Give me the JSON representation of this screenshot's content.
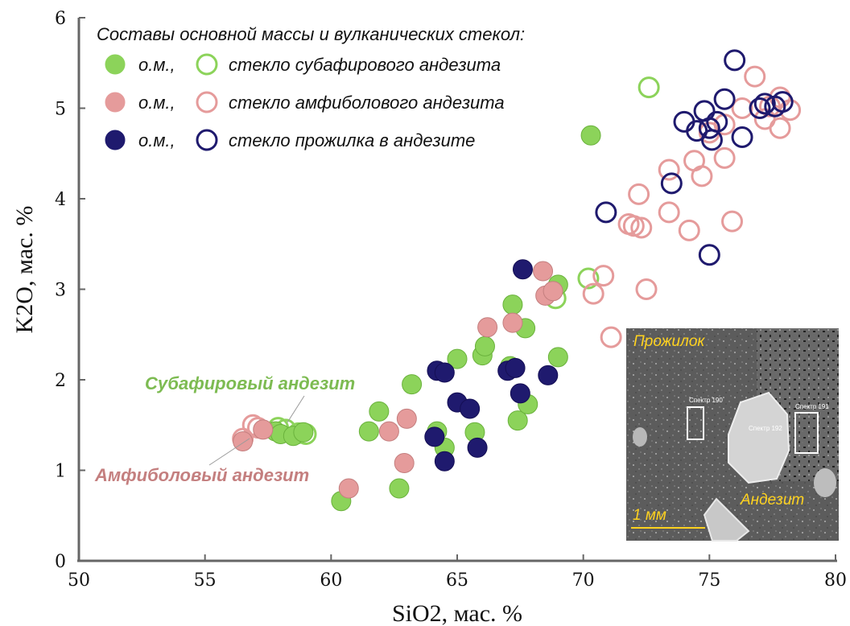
{
  "chart_data": {
    "type": "scatter",
    "title": "",
    "xlabel": "SiO2, мас. %",
    "ylabel": "K2O, мас. %",
    "xlim": [
      50,
      80
    ],
    "ylim": [
      0,
      6
    ],
    "xticks": [
      50,
      55,
      60,
      65,
      70,
      75,
      80
    ],
    "yticks": [
      0,
      1,
      2,
      3,
      4,
      5,
      6
    ],
    "grid": false,
    "legend": {
      "title": "Составы основной массы и вулканических стекол:",
      "placement": "top-left",
      "rows": [
        {
          "filled_label": "о.м.,",
          "open_label": "стекло субафирового андезита",
          "color": "#8cd35a"
        },
        {
          "filled_label": "о.м.,",
          "open_label": "стекло амфиболового андезита",
          "color": "#e59b9b"
        },
        {
          "filled_label": "о.м.,",
          "open_label": "стекло прожилка в андезите",
          "color": "#1f1a6e"
        }
      ]
    },
    "annotations": [
      {
        "text": "Субафировый андезит",
        "color": "#7dbb52"
      },
      {
        "text": "Амфиболовый андезит",
        "color": "#c47f7f"
      }
    ],
    "series": [
      {
        "name": "о.м., стекло субафирового андезита (о.м.)",
        "style": "filled",
        "color": "#8cd35a",
        "stroke": "#6ab23c",
        "points": [
          [
            57.8,
            1.43
          ],
          [
            58.0,
            1.4
          ],
          [
            58.5,
            1.38
          ],
          [
            58.9,
            1.42
          ],
          [
            60.4,
            0.66
          ],
          [
            61.5,
            1.43
          ],
          [
            61.9,
            1.65
          ],
          [
            62.7,
            0.8
          ],
          [
            63.2,
            1.95
          ],
          [
            64.2,
            1.43
          ],
          [
            64.5,
            1.25
          ],
          [
            65.0,
            2.23
          ],
          [
            65.7,
            1.42
          ],
          [
            66.0,
            2.27
          ],
          [
            66.1,
            2.37
          ],
          [
            67.2,
            2.83
          ],
          [
            67.1,
            2.15
          ],
          [
            67.4,
            1.55
          ],
          [
            67.7,
            2.57
          ],
          [
            67.8,
            1.73
          ],
          [
            69.0,
            3.05
          ],
          [
            69.0,
            2.25
          ],
          [
            70.3,
            4.7
          ]
        ]
      },
      {
        "name": "стекло субафирового андезита",
        "style": "open",
        "color": "#8cd35a",
        "points": [
          [
            57.9,
            1.47
          ],
          [
            58.2,
            1.45
          ],
          [
            58.7,
            1.41
          ],
          [
            59.0,
            1.4
          ],
          [
            68.9,
            2.9
          ],
          [
            70.2,
            3.12
          ],
          [
            72.6,
            5.23
          ]
        ]
      },
      {
        "name": "о.м., стекло амфиболового андезита (о.м.)",
        "style": "filled",
        "color": "#e59b9b",
        "stroke": "#c47f7f",
        "points": [
          [
            56.5,
            1.32
          ],
          [
            57.3,
            1.45
          ],
          [
            60.7,
            0.8
          ],
          [
            62.3,
            1.43
          ],
          [
            62.9,
            1.08
          ],
          [
            63.0,
            1.57
          ],
          [
            66.2,
            2.58
          ],
          [
            67.2,
            2.63
          ],
          [
            68.4,
            3.2
          ],
          [
            68.5,
            2.93
          ],
          [
            68.8,
            2.98
          ]
        ]
      },
      {
        "name": "стекло амфиболового андезита",
        "style": "open",
        "color": "#e59b9b",
        "points": [
          [
            56.5,
            1.35
          ],
          [
            56.9,
            1.5
          ],
          [
            57.1,
            1.47
          ],
          [
            70.4,
            2.95
          ],
          [
            70.8,
            3.15
          ],
          [
            71.1,
            2.47
          ],
          [
            71.8,
            3.72
          ],
          [
            72.0,
            3.7
          ],
          [
            72.2,
            4.05
          ],
          [
            72.3,
            3.68
          ],
          [
            72.5,
            3.0
          ],
          [
            73.4,
            4.32
          ],
          [
            73.4,
            3.85
          ],
          [
            74.2,
            3.65
          ],
          [
            74.4,
            4.42
          ],
          [
            74.7,
            4.25
          ],
          [
            75.0,
            4.73
          ],
          [
            75.6,
            4.45
          ],
          [
            75.6,
            4.82
          ],
          [
            75.9,
            3.75
          ],
          [
            76.3,
            5.0
          ],
          [
            76.8,
            5.35
          ],
          [
            77.2,
            4.88
          ],
          [
            77.4,
            5.02
          ],
          [
            77.8,
            5.12
          ],
          [
            77.8,
            4.78
          ],
          [
            78.2,
            4.98
          ]
        ]
      },
      {
        "name": "о.м., стекло прожилка в андезите (о.м.)",
        "style": "filled",
        "color": "#1f1a6e",
        "stroke": "#150f55",
        "points": [
          [
            64.1,
            1.37
          ],
          [
            64.2,
            2.1
          ],
          [
            64.5,
            2.08
          ],
          [
            64.5,
            1.1
          ],
          [
            65.0,
            1.75
          ],
          [
            65.5,
            1.68
          ],
          [
            65.8,
            1.25
          ],
          [
            67.0,
            2.1
          ],
          [
            67.3,
            2.13
          ],
          [
            67.5,
            1.85
          ],
          [
            67.6,
            3.22
          ],
          [
            68.6,
            2.05
          ]
        ]
      },
      {
        "name": "стекло прожилка в андезите",
        "style": "open",
        "color": "#1f1a6e",
        "points": [
          [
            70.9,
            3.85
          ],
          [
            73.5,
            4.17
          ],
          [
            74.0,
            4.85
          ],
          [
            74.5,
            4.75
          ],
          [
            74.8,
            4.97
          ],
          [
            75.0,
            4.78
          ],
          [
            75.0,
            3.38
          ],
          [
            75.1,
            4.65
          ],
          [
            75.3,
            4.85
          ],
          [
            75.6,
            5.1
          ],
          [
            76.0,
            5.53
          ],
          [
            76.3,
            4.68
          ],
          [
            77.0,
            5.0
          ],
          [
            77.2,
            5.05
          ],
          [
            77.6,
            5.02
          ],
          [
            77.9,
            5.07
          ]
        ]
      }
    ]
  },
  "inset": {
    "label_top": "Прожилок",
    "label_bottom": "Андезит",
    "scale_label": "1 мм",
    "spectra": [
      "Спектр 190",
      "Спектр 192",
      "Спектр 191"
    ]
  }
}
